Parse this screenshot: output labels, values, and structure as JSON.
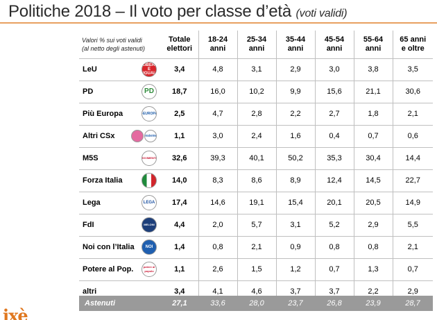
{
  "header": {
    "title": "Politiche 2018 – Il voto per classe d’età",
    "subtitle": "(voti validi)"
  },
  "table": {
    "note_line1": "Valori % sui voti validi",
    "note_line2": "(al netto degli astenuti)",
    "columns": [
      {
        "l1": "Totale",
        "l2": "elettori"
      },
      {
        "l1": "18-24",
        "l2": "anni"
      },
      {
        "l1": "25-34",
        "l2": "anni"
      },
      {
        "l1": "35-44",
        "l2": "anni"
      },
      {
        "l1": "45-54",
        "l2": "anni"
      },
      {
        "l1": "55-64",
        "l2": "anni"
      },
      {
        "l1": "65 anni",
        "l2": "e oltre"
      }
    ],
    "rows": [
      {
        "party": "LeU",
        "logo": "leu-logo",
        "values": [
          "3,4",
          "4,8",
          "3,1",
          "2,9",
          "3,0",
          "3,8",
          "3,5"
        ]
      },
      {
        "party": "PD",
        "logo": "pd-logo",
        "values": [
          "18,7",
          "16,0",
          "10,2",
          "9,9",
          "15,6",
          "21,1",
          "30,6"
        ]
      },
      {
        "party": "Più Europa",
        "logo": "piu-europa-logo",
        "values": [
          "2,5",
          "4,7",
          "2,8",
          "2,2",
          "2,7",
          "1,8",
          "2,1"
        ]
      },
      {
        "party": "Altri CSx",
        "logo": "altri-csx-logos",
        "values": [
          "1,1",
          "3,0",
          "2,4",
          "1,6",
          "0,4",
          "0,7",
          "0,6"
        ]
      },
      {
        "party": "M5S",
        "logo": "m5s-logo",
        "values": [
          "32,6",
          "39,3",
          "40,1",
          "50,2",
          "35,3",
          "30,4",
          "14,4"
        ]
      },
      {
        "party": "Forza Italia",
        "logo": "forza-italia-logo",
        "values": [
          "14,0",
          "8,3",
          "8,6",
          "8,9",
          "12,4",
          "14,5",
          "22,7"
        ]
      },
      {
        "party": "Lega",
        "logo": "lega-logo",
        "values": [
          "17,4",
          "14,6",
          "19,1",
          "15,4",
          "20,1",
          "20,5",
          "14,9"
        ]
      },
      {
        "party": "FdI",
        "logo": "fdi-logo",
        "values": [
          "4,4",
          "2,0",
          "5,7",
          "3,1",
          "5,2",
          "2,9",
          "5,5"
        ]
      },
      {
        "party": "Noi con l’Italia",
        "logo": "noi-con-italia-logo",
        "values": [
          "1,4",
          "0,8",
          "2,1",
          "0,9",
          "0,8",
          "0,8",
          "2,1"
        ]
      },
      {
        "party": "Potere al Pop.",
        "logo": "potere-al-popolo-logo",
        "values": [
          "1,1",
          "2,6",
          "1,5",
          "1,2",
          "0,7",
          "1,3",
          "0,7"
        ]
      },
      {
        "party": "altri",
        "logo": "",
        "values": [
          "3,4",
          "4,1",
          "4,6",
          "3,7",
          "3,7",
          "2,2",
          "2,9"
        ]
      }
    ],
    "abstention": {
      "label": "Astenuti",
      "values": [
        "27,1",
        "33,6",
        "28,0",
        "23,7",
        "26,8",
        "23,9",
        "28,7"
      ]
    }
  },
  "logo_text": {
    "leu": "LIBERI E UGUALI",
    "pd": "PD",
    "piu_europa": "+EUROPA",
    "insieme": "insieme",
    "m5s": "MOVIMENTO",
    "lega": "LEGA",
    "fdi": "MELONI",
    "noi": "NOI",
    "pap": "potere al popolo"
  },
  "brand": "ixè",
  "colors": {
    "accent": "#e07820",
    "rule": "#e8a060",
    "abstention_bg": "#9a9a9a",
    "grid": "#bfbfbf"
  }
}
